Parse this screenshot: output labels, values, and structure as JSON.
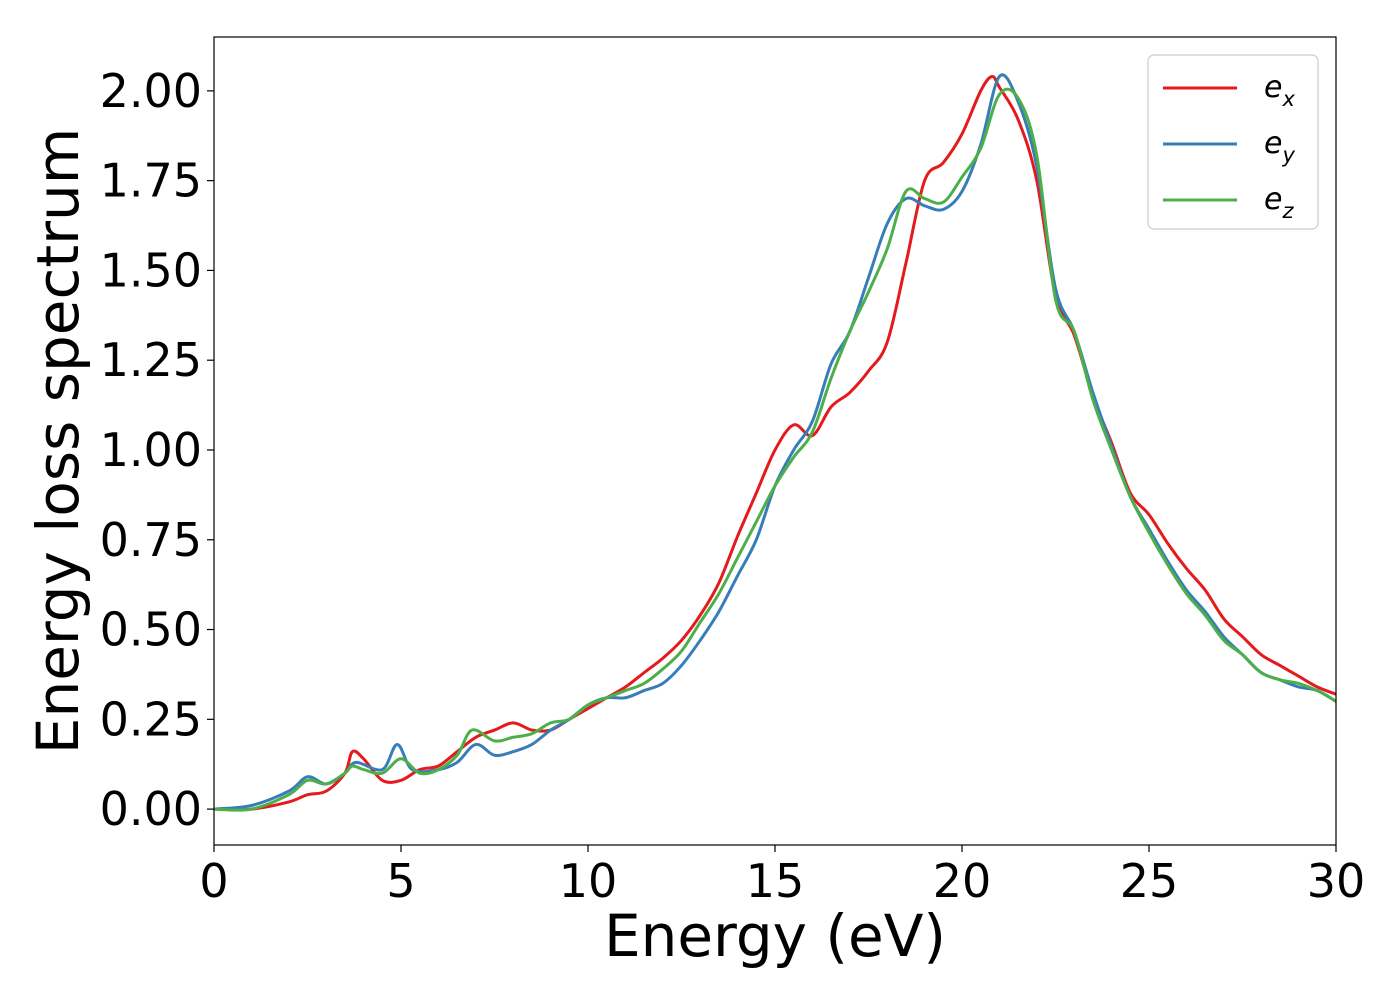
{
  "chart_data": {
    "type": "line",
    "title": "",
    "xlabel": "Energy (eV)",
    "ylabel": "Energy loss spectrum",
    "xlim": [
      0,
      30
    ],
    "ylim": [
      -0.1,
      2.15
    ],
    "xticks": [
      0,
      5,
      10,
      15,
      20,
      25,
      30
    ],
    "xtick_labels": [
      "0",
      "5",
      "10",
      "15",
      "20",
      "25",
      "30"
    ],
    "yticks": [
      0.0,
      0.25,
      0.5,
      0.75,
      1.0,
      1.25,
      1.5,
      1.75,
      2.0
    ],
    "ytick_labels": [
      "0.00",
      "0.25",
      "0.50",
      "0.75",
      "1.00",
      "1.25",
      "1.50",
      "1.75",
      "2.00"
    ],
    "grid": false,
    "legend_position": "top-right",
    "series": [
      {
        "name": "e_x",
        "label_base": "e",
        "label_sub": "x",
        "color": "#e41a1c",
        "x": [
          0,
          1,
          2,
          2.5,
          3,
          3.5,
          3.7,
          4,
          4.5,
          5,
          5.5,
          6,
          6.5,
          7,
          7.5,
          8,
          8.5,
          9,
          9.5,
          10,
          10.5,
          11,
          11.5,
          12,
          12.5,
          13,
          13.5,
          14,
          14.5,
          15,
          15.5,
          16,
          16.5,
          17,
          17.5,
          18,
          18.5,
          19,
          19.5,
          20,
          20.5,
          20.8,
          21,
          21.5,
          22,
          22.5,
          23,
          23.5,
          24,
          24.5,
          25,
          25.5,
          26,
          26.5,
          27,
          27.5,
          28,
          28.5,
          29,
          29.5,
          30
        ],
        "y": [
          0.0,
          0.0,
          0.02,
          0.04,
          0.05,
          0.1,
          0.16,
          0.14,
          0.08,
          0.08,
          0.11,
          0.12,
          0.16,
          0.2,
          0.22,
          0.24,
          0.22,
          0.22,
          0.25,
          0.28,
          0.31,
          0.34,
          0.38,
          0.42,
          0.47,
          0.54,
          0.63,
          0.76,
          0.88,
          1.0,
          1.07,
          1.04,
          1.12,
          1.16,
          1.22,
          1.3,
          1.52,
          1.75,
          1.8,
          1.88,
          2.0,
          2.04,
          2.01,
          1.92,
          1.75,
          1.43,
          1.32,
          1.15,
          1.02,
          0.88,
          0.82,
          0.74,
          0.67,
          0.61,
          0.53,
          0.48,
          0.43,
          0.4,
          0.37,
          0.34,
          0.32
        ]
      },
      {
        "name": "e_y",
        "label_base": "e",
        "label_sub": "y",
        "color": "#377eb8",
        "x": [
          0,
          1,
          2,
          2.5,
          3,
          3.5,
          3.8,
          4.5,
          4.9,
          5.3,
          6,
          6.5,
          7,
          7.5,
          8,
          8.5,
          9,
          9.5,
          10,
          10.5,
          11,
          11.5,
          12,
          12.5,
          13,
          13.5,
          14,
          14.5,
          15,
          15.5,
          16,
          16.5,
          17,
          17.5,
          18,
          18.5,
          19,
          19.5,
          20,
          20.5,
          21,
          21.5,
          22,
          22.5,
          23,
          23.5,
          24,
          24.5,
          25,
          25.5,
          26,
          26.5,
          27,
          27.5,
          28,
          28.5,
          29,
          29.5,
          30
        ],
        "y": [
          0.0,
          0.01,
          0.05,
          0.09,
          0.07,
          0.1,
          0.13,
          0.11,
          0.18,
          0.11,
          0.11,
          0.13,
          0.18,
          0.15,
          0.16,
          0.18,
          0.22,
          0.25,
          0.29,
          0.31,
          0.31,
          0.33,
          0.35,
          0.4,
          0.47,
          0.55,
          0.65,
          0.75,
          0.9,
          1.0,
          1.08,
          1.24,
          1.33,
          1.48,
          1.63,
          1.7,
          1.68,
          1.67,
          1.72,
          1.85,
          2.04,
          1.97,
          1.79,
          1.45,
          1.33,
          1.16,
          1.01,
          0.87,
          0.78,
          0.69,
          0.61,
          0.55,
          0.48,
          0.43,
          0.38,
          0.36,
          0.34,
          0.33,
          0.3
        ]
      },
      {
        "name": "e_z",
        "label_base": "e",
        "label_sub": "z",
        "color": "#4daf4a",
        "x": [
          0,
          1,
          2,
          2.5,
          3,
          3.5,
          3.7,
          4,
          4.5,
          5,
          5.5,
          6,
          6.5,
          6.9,
          7.5,
          8,
          8.5,
          9,
          9.5,
          10,
          10.5,
          11,
          11.5,
          12,
          12.5,
          13,
          13.5,
          14,
          14.5,
          15,
          15.5,
          16,
          16.5,
          17,
          17.5,
          18,
          18.5,
          19,
          19.5,
          20,
          20.5,
          21,
          21.5,
          22,
          22.5,
          23,
          23.5,
          24,
          24.5,
          25,
          25.5,
          26,
          26.5,
          27,
          27.5,
          28,
          28.5,
          29,
          29.5,
          30
        ],
        "y": [
          0.0,
          0.0,
          0.04,
          0.08,
          0.07,
          0.1,
          0.12,
          0.11,
          0.1,
          0.14,
          0.1,
          0.11,
          0.15,
          0.22,
          0.19,
          0.2,
          0.21,
          0.24,
          0.25,
          0.29,
          0.31,
          0.33,
          0.35,
          0.39,
          0.44,
          0.52,
          0.6,
          0.7,
          0.8,
          0.9,
          0.98,
          1.05,
          1.2,
          1.33,
          1.44,
          1.56,
          1.72,
          1.7,
          1.69,
          1.76,
          1.84,
          1.99,
          1.98,
          1.82,
          1.42,
          1.33,
          1.14,
          1.0,
          0.87,
          0.77,
          0.68,
          0.6,
          0.54,
          0.47,
          0.43,
          0.38,
          0.36,
          0.35,
          0.33,
          0.3
        ]
      }
    ]
  }
}
